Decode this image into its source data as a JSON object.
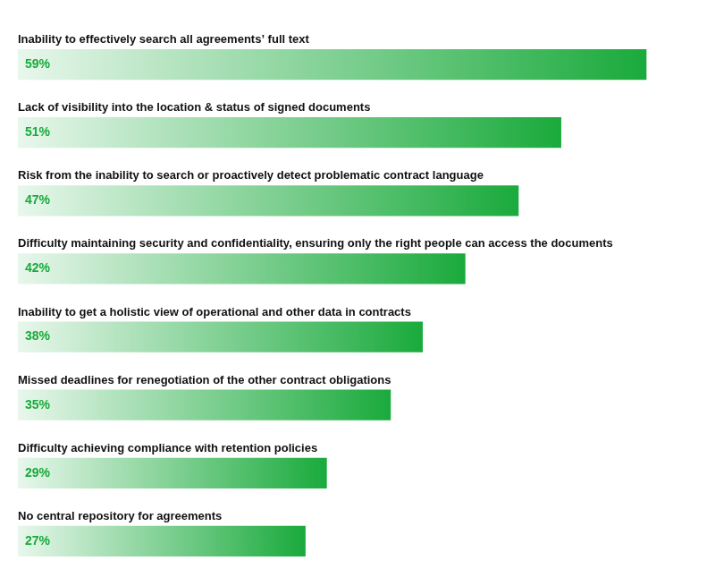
{
  "chart_data": {
    "type": "bar",
    "orientation": "horizontal",
    "categories": [
      "Inability to effectively search all agreements’ full text",
      "Lack of visibility into the location & status of signed documents",
      "Risk from the inability to search or proactively detect problematic contract language",
      "Difficulty maintaining security and confidentiality, ensuring only the right people can access the documents",
      "Inability to get a holistic view of operational and other data in contracts",
      "Missed deadlines for renegotiation of the other contract obligations",
      "Difficulty achieving compliance with retention policies",
      "No central repository for agreements"
    ],
    "values": [
      59,
      51,
      47,
      42,
      38,
      35,
      29,
      27
    ],
    "value_labels": [
      "59%",
      "51%",
      "47%",
      "42%",
      "38%",
      "35%",
      "29%",
      "27%"
    ],
    "data_labels": true,
    "color": "#1aaa3c",
    "xlim": [
      0,
      63
    ],
    "tick_labels": false,
    "grid": false
  }
}
